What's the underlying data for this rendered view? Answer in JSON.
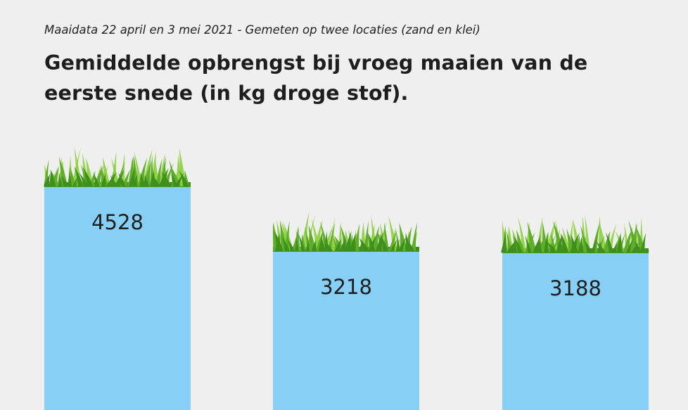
{
  "chart_data": {
    "type": "bar",
    "subtitle": "Maaidata 22 april en 3 mei 2021 - Gemeten op twee locaties (zand en klei)",
    "title": "Gemiddelde opbrengst bij vroeg maaien van de eerste snede (in kg droge stof).",
    "categories": [
      "",
      "",
      ""
    ],
    "values": [
      4528,
      3218,
      3188
    ],
    "data_labels": [
      "4528",
      "3218",
      "3188"
    ],
    "ylim": [
      0,
      8300
    ],
    "grid": false,
    "legend": "none",
    "colors": {
      "bar": "#87cff5",
      "grass_dark": "#3f8f1e",
      "grass_mid": "#5fae2a",
      "grass_light": "#8ccf3c",
      "background": "#efefef"
    }
  }
}
